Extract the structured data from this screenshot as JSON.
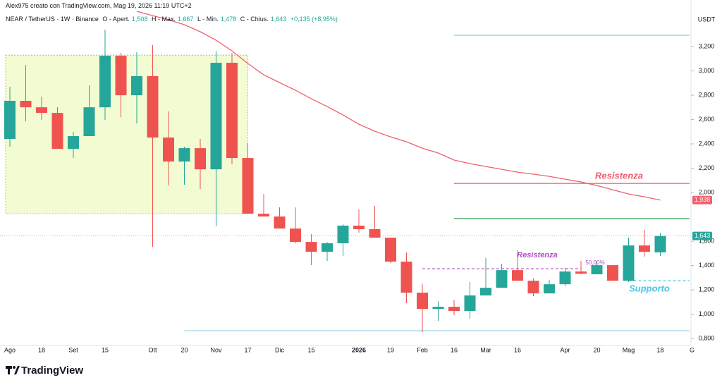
{
  "header": {
    "credit": "Alex975 creato con TradingView.com, Mag 19, 2026 11:19 UTC+2",
    "symbol": "NEAR / TetherUS · 1W · Binance",
    "ohlc": [
      {
        "label": "O - Apert.",
        "value": "1,508"
      },
      {
        "label": "H - Max.",
        "value": "1,667"
      },
      {
        "label": "L - Min.",
        "value": "1,478"
      },
      {
        "label": "C - Chius.",
        "value": "1,643"
      }
    ],
    "change": "+0,135 (+8,95%)"
  },
  "logo": "TradingView",
  "chart_data": {
    "type": "candlestick",
    "currency": "USDT",
    "categories": [
      "Ago",
      null,
      "18",
      null,
      "Set",
      null,
      "15",
      null,
      null,
      "Ott",
      null,
      "20",
      null,
      "Nov",
      null,
      "17",
      null,
      "Dic",
      null,
      "15",
      null,
      null,
      "2026",
      null,
      "19",
      null,
      "Feb",
      null,
      "16",
      null,
      "Mar",
      null,
      "16",
      null,
      null,
      "Apr",
      null,
      "20",
      null,
      "Mag",
      null,
      "18",
      null,
      "G"
    ],
    "open": [
      2441,
      2754,
      2701,
      2655,
      2359,
      2464,
      2701,
      3125,
      2800,
      2957,
      2452,
      2255,
      2365,
      2191,
      3067,
      2284,
      1826,
      1803,
      1704,
      1594,
      1513,
      1583,
      1728,
      1699,
      1629,
      1432,
      1177,
      1043,
      1061,
      1026,
      1154,
      1217,
      1362,
      1275,
      1171,
      1246,
      1351,
      1328,
      1403,
      1275,
      1565,
      1508,
      null,
      null
    ],
    "high": [
      2870,
      3049,
      2788,
      2701,
      2499,
      2881,
      3339,
      3148,
      3154,
      3212,
      2667,
      2377,
      2441,
      3165,
      3148,
      2406,
      1988,
      1878,
      1878,
      1658,
      1594,
      1739,
      1861,
      1890,
      1629,
      1507,
      1246,
      1107,
      1119,
      1264,
      1461,
      1414,
      1525,
      1293,
      1281,
      1380,
      1438,
      1438,
      1403,
      1629,
      1693,
      1667,
      null,
      null
    ],
    "low": [
      2377,
      2586,
      2597,
      2359,
      2284,
      2464,
      2597,
      2620,
      2568,
      1554,
      2058,
      2064,
      2029,
      1722,
      2232,
      1826,
      1803,
      1704,
      1583,
      1403,
      1438,
      1478,
      1670,
      1629,
      1420,
      1090,
      852,
      945,
      991,
      962,
      1154,
      1217,
      1275,
      1148,
      1171,
      1229,
      1328,
      1328,
      1275,
      1264,
      1473,
      1478,
      null,
      null
    ],
    "close": [
      2754,
      2701,
      2655,
      2359,
      2464,
      2701,
      3125,
      2800,
      2957,
      2452,
      2255,
      2365,
      2191,
      3067,
      2284,
      1826,
      1803,
      1704,
      1594,
      1513,
      1583,
      1728,
      1699,
      1629,
      1432,
      1177,
      1043,
      1061,
      1026,
      1154,
      1217,
      1362,
      1275,
      1171,
      1246,
      1351,
      1333,
      1403,
      1275,
      1565,
      1513,
      1643,
      null,
      null
    ],
    "up_color": "#26a69a",
    "down_color": "#ef5350",
    "overlays": [
      {
        "type": "line",
        "color": "#f0606e",
        "values": [
          null,
          null,
          null,
          null,
          null,
          null,
          null,
          null,
          3490,
          3455,
          3420,
          3380,
          3322,
          3252,
          3165,
          3061,
          2968,
          2904,
          2841,
          2771,
          2707,
          2638,
          2562,
          2504,
          2458,
          2417,
          2365,
          2325,
          2267,
          2238,
          2214,
          2191,
          2168,
          2151,
          2133,
          2110,
          2087,
          2058,
          2023,
          1988,
          1965,
          1938,
          null,
          null
        ]
      }
    ],
    "box": {
      "from": 0,
      "to": 15,
      "ylim": [
        1826,
        3130
      ],
      "color": "#f2fbd2",
      "border": "#8cae5a"
    },
    "hlines": [
      {
        "value": 3293,
        "from": 28,
        "color": "#7fd8d0"
      },
      {
        "value": 2075,
        "from": 28,
        "color": "#f05a6a",
        "label": "Resistenza"
      },
      {
        "value": 1786,
        "from": 28,
        "color": "#2e9e4f"
      },
      {
        "value": 1374,
        "from": 26,
        "to": 36,
        "color": "#b04cc0",
        "dashed": true,
        "label": "Resistenza",
        "note": "50,00%"
      },
      {
        "value": 1275,
        "from": 39,
        "color": "#4cc3e0",
        "dashed": true,
        "label": "Supporto"
      },
      {
        "value": 864,
        "from": 11,
        "color": "#9ed8e6"
      }
    ],
    "last_price": 1643,
    "price_labels": [
      {
        "value": 1938,
        "label": "1,938",
        "color": "#f0606e"
      },
      {
        "value": 1643,
        "label": "1,643",
        "color": "#26a69a"
      }
    ],
    "ylim": [
      754,
      3496
    ],
    "yticks": [
      {
        "value": 3200,
        "label": "3,200"
      },
      {
        "value": 3000,
        "label": "3,000"
      },
      {
        "value": 2800,
        "label": "2,800"
      },
      {
        "value": 2600,
        "label": "2,600"
      },
      {
        "value": 2400,
        "label": "2,400"
      },
      {
        "value": 2200,
        "label": "2,200"
      },
      {
        "value": 2000,
        "label": "2,000"
      },
      {
        "value": 1600,
        "label": "1,600"
      },
      {
        "value": 1400,
        "label": "1,400"
      },
      {
        "value": 1200,
        "label": "1,200"
      },
      {
        "value": 1000,
        "label": "1,000"
      },
      {
        "value": 800,
        "label": "0,800"
      }
    ],
    "grid": false
  }
}
